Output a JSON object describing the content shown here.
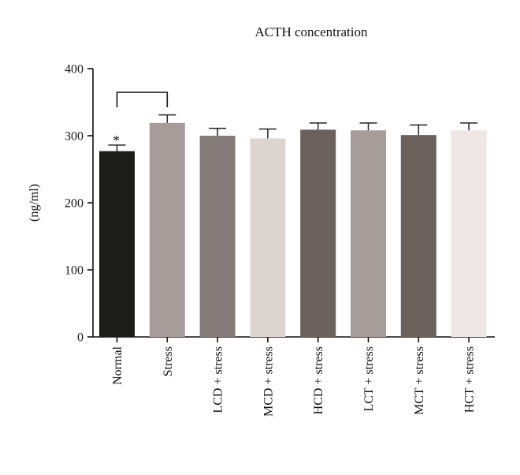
{
  "chart_data": {
    "type": "bar",
    "title": "ACTH concentration",
    "xlabel": "",
    "ylabel": "(ng/ml)",
    "ylim": [
      0,
      400
    ],
    "yticks": [
      0,
      100,
      200,
      300,
      400
    ],
    "grid": false,
    "legend": "none",
    "categories": [
      "Normal",
      "Stress",
      "LCD + stress",
      "MCD + stress",
      "HCD + stress",
      "LCT + stress",
      "MCT + stress",
      "HCT + stress"
    ],
    "values": [
      277,
      319,
      300,
      296,
      309,
      308,
      301,
      308
    ],
    "errors": [
      9,
      12,
      11,
      14,
      10,
      11,
      15,
      11
    ],
    "colors": [
      "#1c1c1a",
      "#a69d9b",
      "#857c79",
      "#ddd5d2",
      "#6a615d",
      "#a69d9b",
      "#6a615d",
      "#efe7e5"
    ],
    "significance": {
      "marker": "*",
      "category_index": 0,
      "bracket_from": 0,
      "bracket_to": 1
    }
  }
}
